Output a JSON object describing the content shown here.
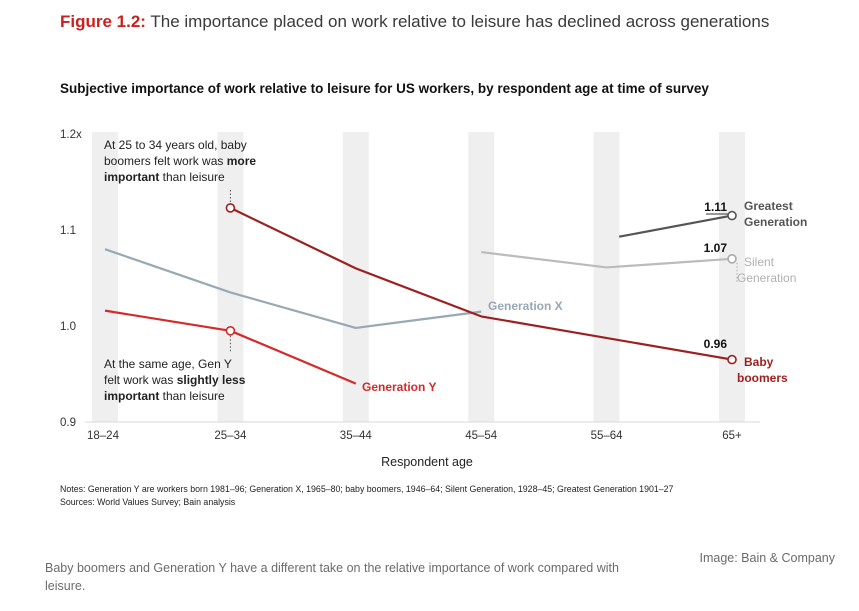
{
  "figure": {
    "label": "Figure 1.2:",
    "title": "The importance placed on work relative to leisure has declined across generations"
  },
  "chart_data": {
    "type": "line",
    "title": "Subjective importance of work relative to leisure for US workers, by respondent age at time of survey",
    "xlabel": "Respondent age",
    "ylabel": "",
    "categories": [
      "18–24",
      "25–34",
      "35–44",
      "45–54",
      "55–64",
      "65+"
    ],
    "ylim": [
      0.9,
      1.2
    ],
    "yticks": [
      "0.9",
      "1.0",
      "1.1",
      "1.2x"
    ],
    "grid": false,
    "series": [
      {
        "name": "Generation X",
        "color": "#97a9b4",
        "points": [
          {
            "x": 0,
            "y": 1.08
          },
          {
            "x": 1,
            "y": 1.035
          },
          {
            "x": 2,
            "y": 0.998
          },
          {
            "x": 3,
            "y": 1.015
          }
        ]
      },
      {
        "name": "Silent Generation",
        "color": "#bbbbbb",
        "points": [
          {
            "x": 3,
            "y": 1.077
          },
          {
            "x": 4,
            "y": 1.061
          },
          {
            "x": 5,
            "y": 1.07
          }
        ]
      },
      {
        "name": "Greatest Generation",
        "color": "#555555",
        "points": [
          {
            "x": 4.1,
            "y": 1.093
          },
          {
            "x": 5,
            "y": 1.115
          }
        ]
      },
      {
        "name": "Baby boomers",
        "color": "#9e1f1f",
        "points": [
          {
            "x": 1,
            "y": 1.123
          },
          {
            "x": 2,
            "y": 1.06
          },
          {
            "x": 3,
            "y": 1.01
          },
          {
            "x": 5,
            "y": 0.965
          }
        ]
      },
      {
        "name": "Generation Y",
        "color": "#d42a2a",
        "points": [
          {
            "x": 0,
            "y": 1.016
          },
          {
            "x": 1,
            "y": 0.995
          },
          {
            "x": 2,
            "y": 0.94
          }
        ]
      }
    ],
    "series_labels": {
      "gen_x": "Generation X",
      "gen_y": "Generation Y",
      "greatest_1": "Greatest",
      "greatest_2": "Generation",
      "silent_1": "Silent",
      "silent_2": "Generation",
      "boomers_1": "Baby",
      "boomers_2": "boomers"
    },
    "data_labels": [
      "1.11",
      "1.07",
      "0.96"
    ],
    "annotations": {
      "boomers_note": [
        [
          {
            "t": "At 25 to 34 years old, baby",
            "b": false
          }
        ],
        [
          {
            "t": "boomers felt work was ",
            "b": false
          },
          {
            "t": "more",
            "b": true
          }
        ],
        [
          {
            "t": "important",
            "b": true
          },
          {
            "t": " than leisure",
            "b": false
          }
        ]
      ],
      "gen_y_note": [
        [
          {
            "t": "At the same age, Gen Y",
            "b": false
          }
        ],
        [
          {
            "t": "felt work was ",
            "b": false
          },
          {
            "t": "slightly less",
            "b": true
          }
        ],
        [
          {
            "t": "important",
            "b": true
          },
          {
            "t": " than leisure",
            "b": false
          }
        ]
      ]
    }
  },
  "notes": {
    "line1": "Notes: Generation Y are workers born 1981–96; Generation X, 1965–80; baby boomers, 1946–64; Silent Generation, 1928–45; Greatest Generation 1901–27",
    "line2": "Sources: World Values Survey; Bain analysis"
  },
  "caption": "Baby boomers and Generation Y have a different take on the relative importance of work compared with leisure.",
  "credit": "Image: Bain & Company"
}
